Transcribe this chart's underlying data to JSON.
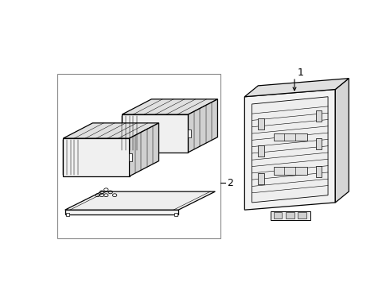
{
  "bg_color": "#ffffff",
  "line_color": "#000000",
  "lw": 0.9,
  "thin_lw": 0.45,
  "label1": "1",
  "label2": "2",
  "box_border": "#888888",
  "face_light": "#f5f5f5",
  "face_mid": "#e8e8e8",
  "face_dark": "#d8d8d8"
}
